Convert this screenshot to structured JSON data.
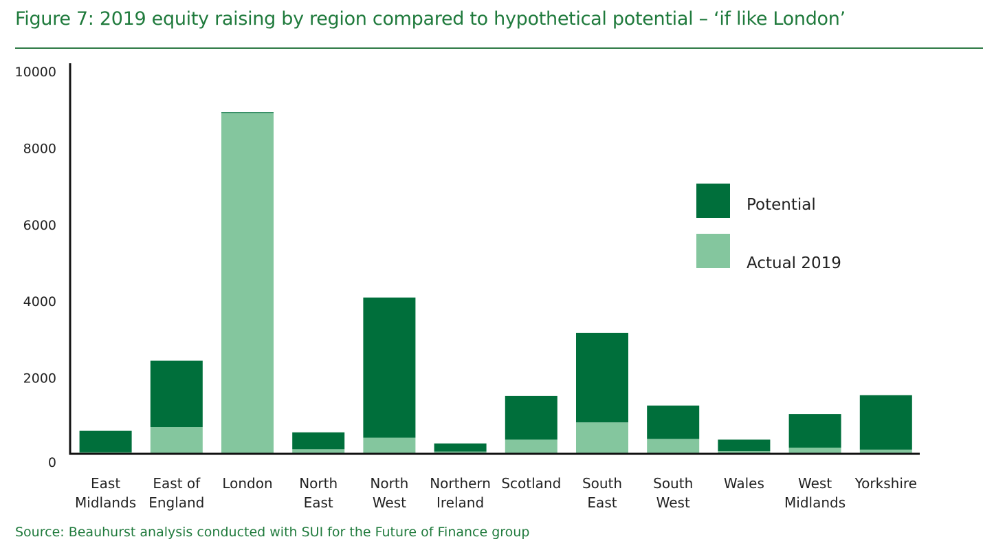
{
  "title": "Figure 7: 2019 equity raising by region compared to hypothetical potential – ‘if like London’",
  "source": "Source: Beauhurst analysis conducted with SUI for the Future of Finance group",
  "colors": {
    "potential": "#006f3b",
    "actual": "#84c69e",
    "axis": "#111111",
    "title": "#1f7a3c"
  },
  "chart_data": {
    "type": "bar",
    "stacked": true,
    "categories": [
      [
        "East",
        "Midlands"
      ],
      [
        "East of",
        "England"
      ],
      [
        "London"
      ],
      [
        "North",
        "East"
      ],
      [
        "North",
        "West"
      ],
      [
        "Northern",
        "Ireland"
      ],
      [
        "Scotland"
      ],
      [
        "South",
        "East"
      ],
      [
        "South",
        "West"
      ],
      [
        "Wales"
      ],
      [
        "West",
        "Midlands"
      ],
      [
        "Yorkshire"
      ]
    ],
    "series": [
      {
        "name": "Actual 2019",
        "key": "actual",
        "values": [
          40,
          700,
          8900,
          120,
          420,
          60,
          370,
          820,
          390,
          70,
          160,
          110
        ]
      },
      {
        "name": "Potential",
        "key": "potential",
        "values": [
          560,
          1730,
          20,
          440,
          3660,
          210,
          1140,
          2340,
          870,
          300,
          880,
          1420
        ]
      }
    ],
    "ylim": [
      0,
      10000
    ],
    "yticks": [
      0,
      2000,
      4000,
      6000,
      8000,
      10000
    ],
    "legend": [
      {
        "label": "Potential",
        "key": "potential"
      },
      {
        "label": "Actual 2019",
        "key": "actual"
      }
    ],
    "legend_position": "right",
    "grid": false
  }
}
